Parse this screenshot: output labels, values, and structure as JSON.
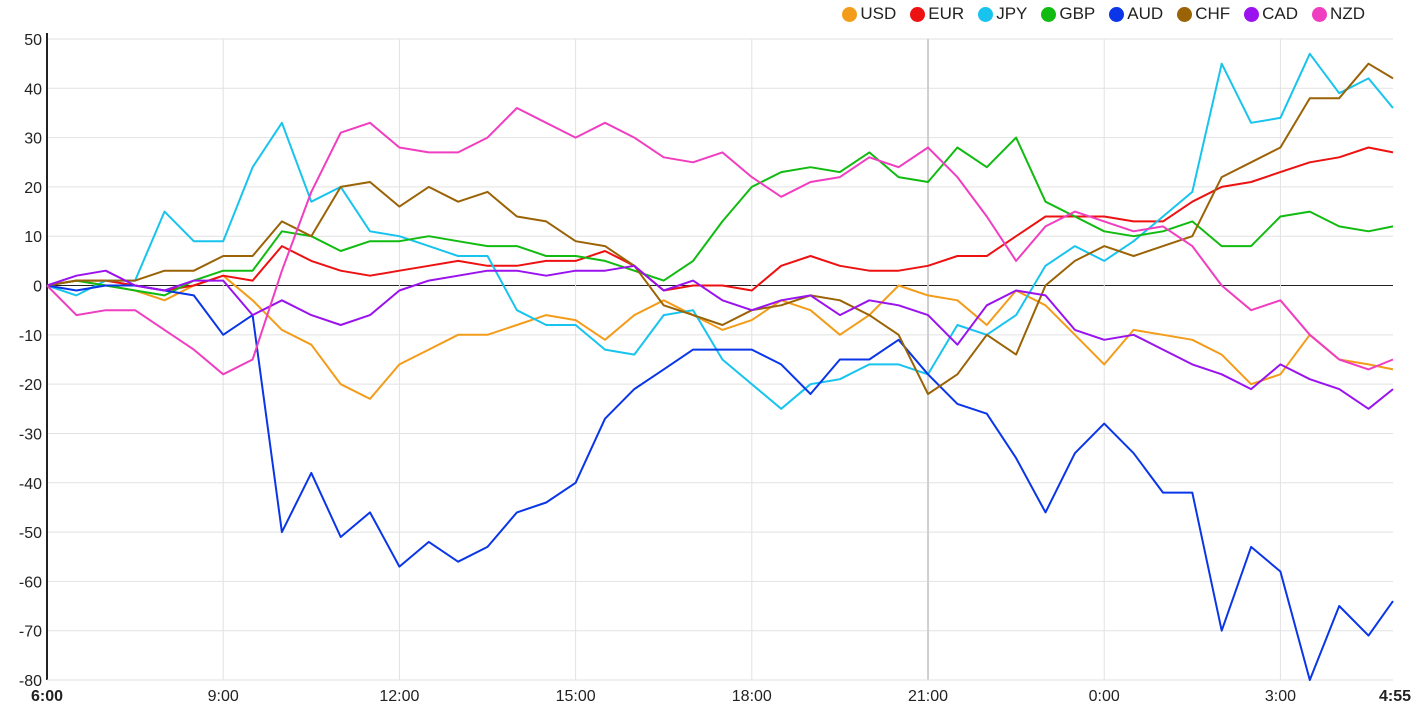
{
  "chart_data": {
    "type": "line",
    "title": "",
    "xlabel": "",
    "ylabel": "",
    "ylim": [
      -80,
      50
    ],
    "yticks": [
      50,
      40,
      30,
      20,
      10,
      0,
      -10,
      -20,
      -30,
      -40,
      -50,
      -60,
      -70,
      -80
    ],
    "x_unit": "hours since 6:00",
    "xlim": [
      0,
      22.9167
    ],
    "xticks": [
      {
        "x": 0,
        "label": "6:00",
        "bold": true
      },
      {
        "x": 3,
        "label": "9:00"
      },
      {
        "x": 6,
        "label": "12:00"
      },
      {
        "x": 9,
        "label": "15:00"
      },
      {
        "x": 12,
        "label": "18:00"
      },
      {
        "x": 15,
        "label": "21:00"
      },
      {
        "x": 18,
        "label": "0:00"
      },
      {
        "x": 21,
        "label": "3:00"
      },
      {
        "x": 22.9167,
        "label": "4:55",
        "bold": true
      }
    ],
    "grid": true,
    "legend_position": "top-right",
    "x": [
      0,
      0.5,
      1,
      1.5,
      2,
      2.5,
      3,
      3.5,
      4,
      4.5,
      5,
      5.5,
      6,
      6.5,
      7,
      7.5,
      8,
      8.5,
      9,
      9.5,
      10,
      10.5,
      11,
      11.5,
      12,
      12.5,
      13,
      13.5,
      14,
      14.5,
      15,
      15.5,
      16,
      16.5,
      17,
      17.5,
      18,
      18.5,
      19,
      19.5,
      20,
      20.5,
      21,
      21.5,
      22,
      22.5,
      22.9167
    ],
    "series": [
      {
        "name": "USD",
        "color": "#f39c1a",
        "values": [
          0,
          1,
          0,
          -1,
          -3,
          0,
          2,
          -3,
          -9,
          -12,
          -20,
          -23,
          -16,
          -13,
          -10,
          -10,
          -8,
          -6,
          -7,
          -11,
          -6,
          -3,
          -6,
          -9,
          -7,
          -3,
          -5,
          -10,
          -6,
          0,
          -2,
          -3,
          -8,
          -1,
          -4,
          -10,
          -16,
          -9,
          -10,
          -11,
          -14,
          -20,
          -18,
          -10,
          -15,
          -16,
          -17
        ]
      },
      {
        "name": "EUR",
        "color": "#ee1111",
        "values": [
          0,
          1,
          1,
          0,
          -1,
          0,
          2,
          1,
          8,
          5,
          3,
          2,
          3,
          4,
          5,
          4,
          4,
          5,
          5,
          7,
          4,
          -1,
          0,
          0,
          -1,
          4,
          6,
          4,
          3,
          3,
          4,
          6,
          6,
          10,
          14,
          14,
          14,
          13,
          13,
          17,
          20,
          21,
          23,
          25,
          26,
          28,
          27
        ]
      },
      {
        "name": "JPY",
        "color": "#18c4ee",
        "values": [
          0,
          -2,
          1,
          1,
          15,
          9,
          9,
          24,
          33,
          17,
          20,
          11,
          10,
          8,
          6,
          6,
          -5,
          -8,
          -8,
          -13,
          -14,
          -6,
          -5,
          -15,
          -20,
          -25,
          -20,
          -19,
          -16,
          -16,
          -18,
          -8,
          -10,
          -6,
          4,
          8,
          5,
          9,
          14,
          19,
          45,
          33,
          34,
          47,
          39,
          42,
          36
        ]
      },
      {
        "name": "GBP",
        "color": "#11bb11",
        "values": [
          0,
          1,
          0,
          -1,
          -2,
          1,
          3,
          3,
          11,
          10,
          7,
          9,
          9,
          10,
          9,
          8,
          8,
          6,
          6,
          5,
          3,
          1,
          5,
          13,
          20,
          23,
          24,
          23,
          27,
          22,
          21,
          28,
          24,
          30,
          17,
          14,
          11,
          10,
          11,
          13,
          8,
          8,
          14,
          15,
          12,
          11,
          12
        ]
      },
      {
        "name": "AUD",
        "color": "#0a36e8",
        "values": [
          0,
          -1,
          0,
          0,
          -1,
          -2,
          -10,
          -6,
          -50,
          -38,
          -51,
          -46,
          -57,
          -52,
          -56,
          -53,
          -46,
          -44,
          -40,
          -27,
          -21,
          -17,
          -13,
          -13,
          -13,
          -16,
          -22,
          -15,
          -15,
          -11,
          -18,
          -24,
          -26,
          -35,
          -46,
          -34,
          -28,
          -34,
          -42,
          -42,
          -70,
          -53,
          -58,
          -80,
          -65,
          -71,
          -64
        ]
      },
      {
        "name": "CHF",
        "color": "#9a6306",
        "values": [
          0,
          1,
          1,
          1,
          3,
          3,
          6,
          6,
          13,
          10,
          20,
          21,
          16,
          20,
          17,
          19,
          14,
          13,
          9,
          8,
          4,
          -4,
          -6,
          -8,
          -5,
          -4,
          -2,
          -3,
          -6,
          -10,
          -22,
          -18,
          -10,
          -14,
          0,
          5,
          8,
          6,
          8,
          10,
          22,
          25,
          28,
          38,
          38,
          45,
          42
        ]
      },
      {
        "name": "CAD",
        "color": "#9a12ee",
        "values": [
          0,
          2,
          3,
          0,
          -1,
          1,
          1,
          -6,
          -3,
          -6,
          -8,
          -6,
          -1,
          1,
          2,
          3,
          3,
          2,
          3,
          3,
          4,
          -1,
          1,
          -3,
          -5,
          -3,
          -2,
          -6,
          -3,
          -4,
          -6,
          -12,
          -4,
          -1,
          -2,
          -9,
          -11,
          -10,
          -13,
          -16,
          -18,
          -21,
          -16,
          -19,
          -21,
          -25,
          -21
        ]
      },
      {
        "name": "NZD",
        "color": "#f03ec0",
        "values": [
          0,
          -6,
          -5,
          -5,
          -9,
          -13,
          -18,
          -15,
          3,
          19,
          31,
          33,
          28,
          27,
          27,
          30,
          36,
          33,
          30,
          33,
          30,
          26,
          25,
          27,
          22,
          18,
          21,
          22,
          26,
          24,
          28,
          22,
          14,
          5,
          12,
          15,
          13,
          11,
          12,
          8,
          0,
          -5,
          -3,
          -10,
          -15,
          -17,
          -15
        ]
      }
    ]
  }
}
